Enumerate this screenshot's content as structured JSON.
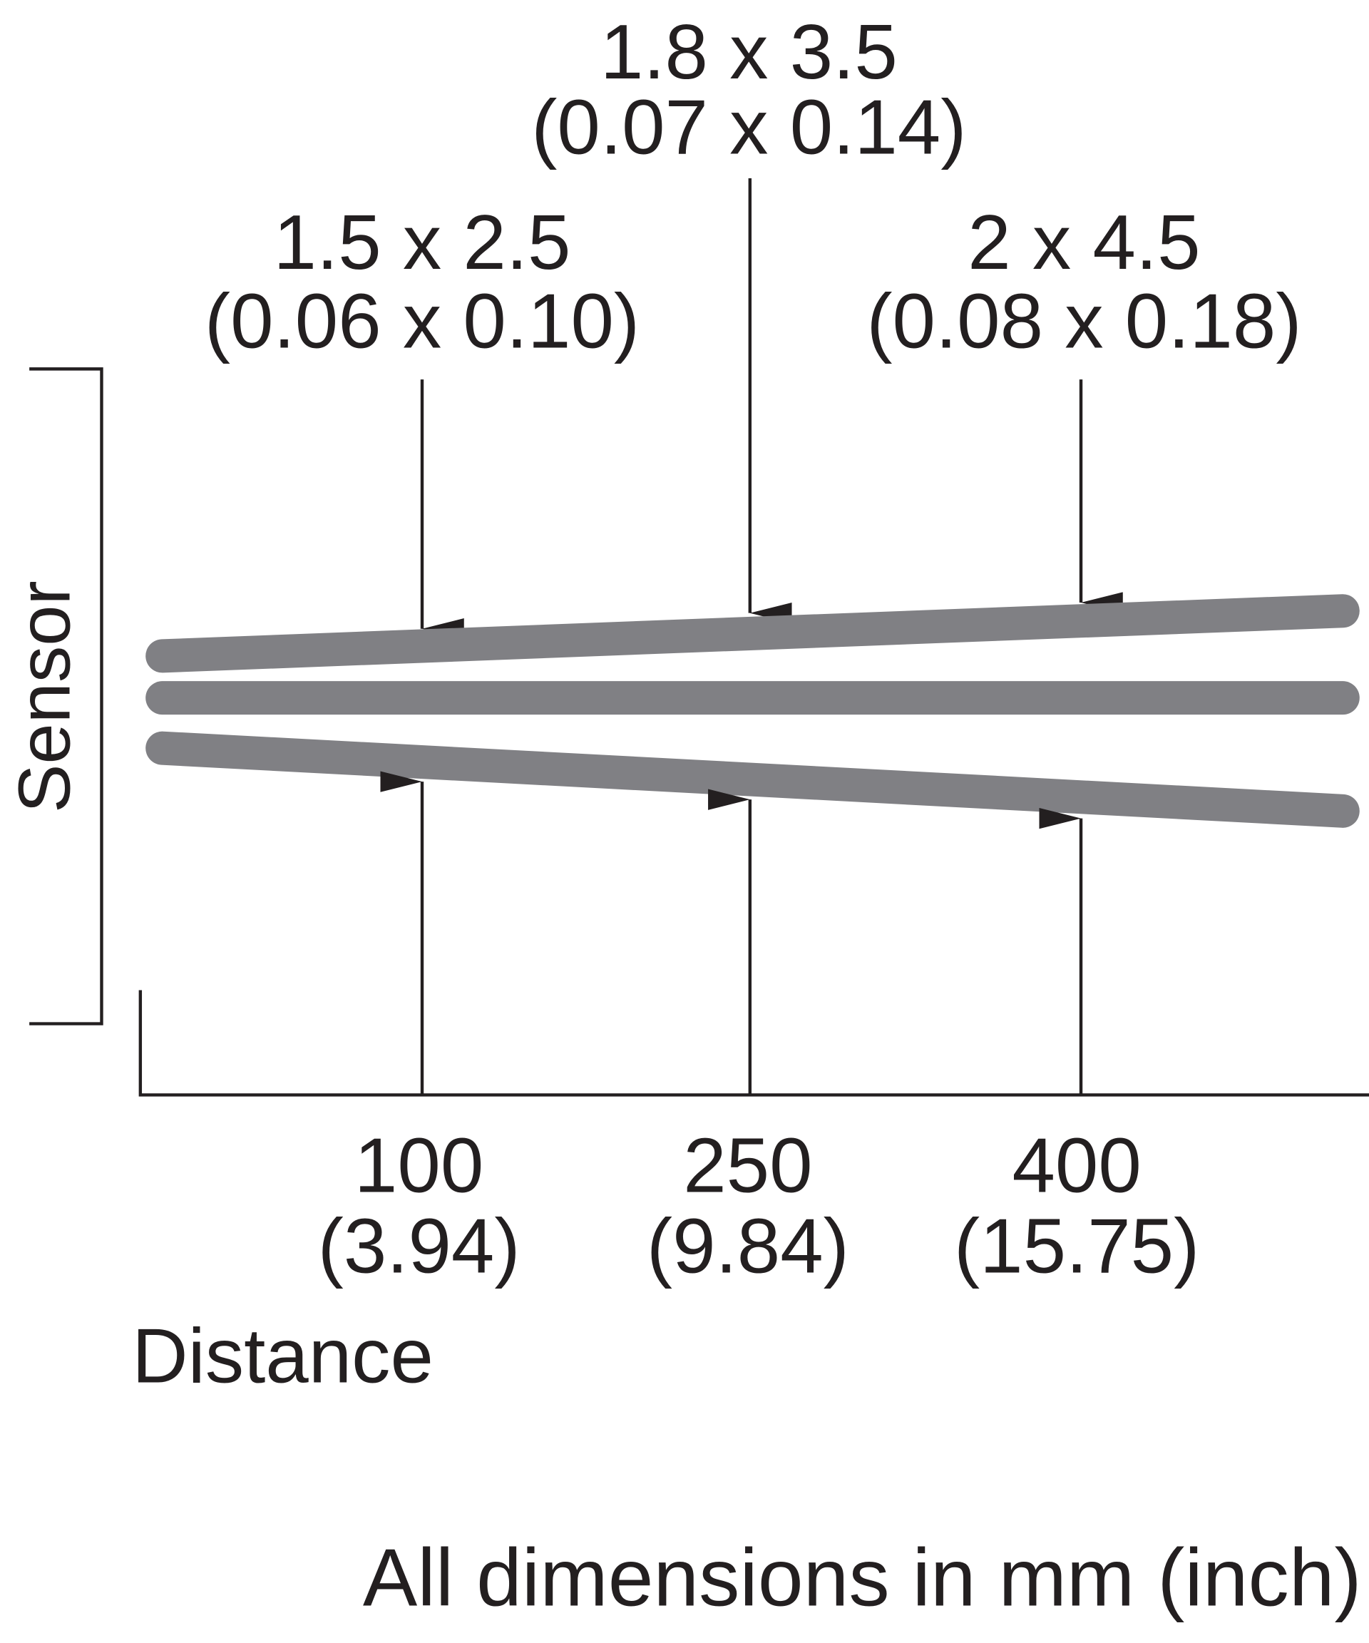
{
  "spots": [
    {
      "size_mm": "1.5 x 2.5",
      "size_in": "(0.06 x 0.10)"
    },
    {
      "size_mm": "1.8 x 3.5",
      "size_in": "(0.07 x 0.14)"
    },
    {
      "size_mm": "2 x 4.5",
      "size_in": "(0.08 x 0.18)"
    }
  ],
  "distances": [
    {
      "mm": "100",
      "in": "(3.94)"
    },
    {
      "mm": "250",
      "in": "(9.84)"
    },
    {
      "mm": "400",
      "in": "(15.75)"
    }
  ],
  "sensor_label": "Sensor",
  "axis_label": "Distance",
  "note": "All dimensions in mm (inch)"
}
